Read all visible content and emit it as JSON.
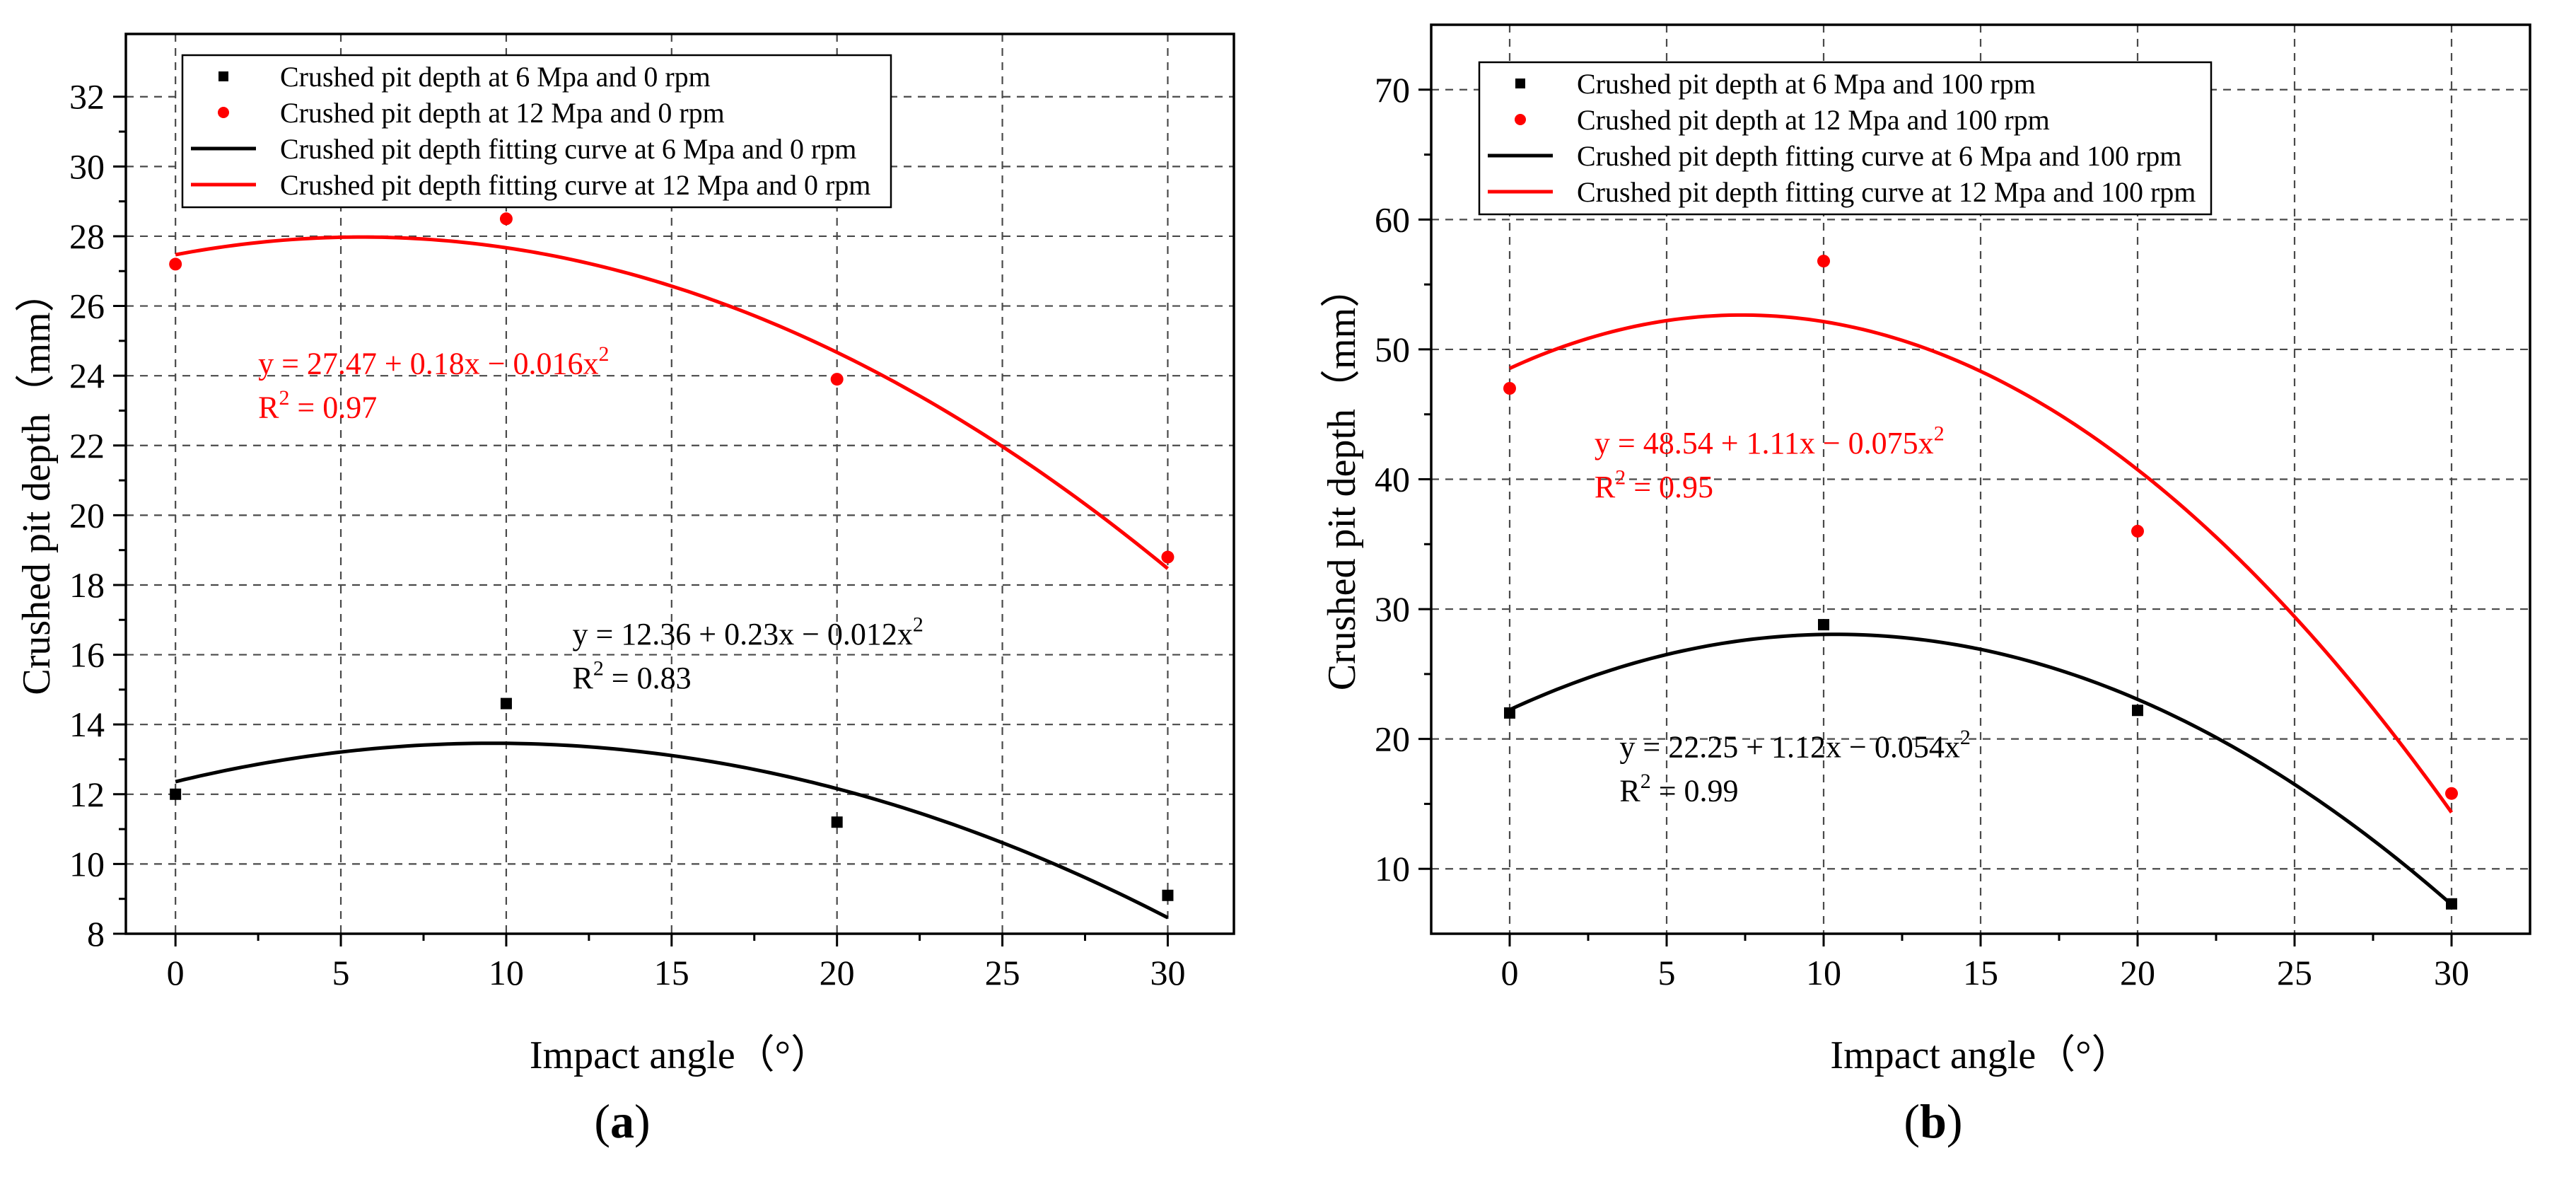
{
  "chart_data": [
    {
      "type": "scatter",
      "panel_label": "a",
      "xlabel": "Impact angle（°）",
      "ylabel": "Crushed pit depth（mm）",
      "xlim": [
        -1.5,
        32.0
      ],
      "ylim": [
        8.0,
        33.8
      ],
      "xticks": [
        0,
        5,
        10,
        15,
        20,
        25,
        30
      ],
      "yticks": [
        8,
        10,
        12,
        14,
        16,
        18,
        20,
        22,
        24,
        26,
        28,
        30,
        32
      ],
      "grid": true,
      "legend_position": "top-left",
      "series": [
        {
          "name": "Crushed pit depth at 6 Mpa and 0 rpm",
          "kind": "points",
          "marker": "square",
          "color": "#000000",
          "x": [
            0,
            10,
            20,
            30
          ],
          "y": [
            12.0,
            14.6,
            11.2,
            9.1
          ]
        },
        {
          "name": "Crushed pit depth at 12 Mpa and 0 rpm",
          "kind": "points",
          "marker": "circle",
          "color": "#ff0000",
          "x": [
            0,
            10,
            20,
            30
          ],
          "y": [
            27.2,
            28.5,
            23.9,
            18.8
          ]
        },
        {
          "name": "Crushed pit depth fitting curve at 6 Mpa and 0 rpm",
          "kind": "curve",
          "color": "#000000",
          "coef": [
            12.36,
            0.23,
            -0.012
          ],
          "domain": [
            0,
            30
          ]
        },
        {
          "name": "Crushed pit depth fitting curve at 12 Mpa and 0 rpm",
          "kind": "curve",
          "color": "#ff0000",
          "coef": [
            27.47,
            0.18,
            -0.016
          ],
          "domain": [
            0,
            30
          ]
        }
      ],
      "annotations": [
        {
          "id": "red",
          "color": "#ff0000",
          "x": 2.5,
          "y": 24.05,
          "eq_pre": "y = 27.47 + 0.18x − 0.016x",
          "eq_sup": "2",
          "r2_pre": "R",
          "r2_sup": "2",
          "r2_post": " = 0.97"
        },
        {
          "id": "black",
          "color": "#000000",
          "x": 12.0,
          "y": 16.3,
          "eq_pre": "y = 12.36 + 0.23x − 0.012x",
          "eq_sup": "2",
          "r2_pre": "R",
          "r2_sup": "2",
          "r2_post": " = 0.83"
        }
      ]
    },
    {
      "type": "scatter",
      "panel_label": "b",
      "xlabel": "Impact angle（°）",
      "ylabel": "Crushed pit depth（mm）",
      "xlim": [
        -2.5,
        32.5
      ],
      "ylim": [
        5.0,
        75.0
      ],
      "xticks": [
        0,
        5,
        10,
        15,
        20,
        25,
        30
      ],
      "yticks": [
        10,
        20,
        30,
        40,
        50,
        60,
        70
      ],
      "grid": true,
      "legend_position": "top-left",
      "series": [
        {
          "name": "Crushed pit depth at 6 Mpa and 100 rpm",
          "kind": "points",
          "marker": "square",
          "color": "#000000",
          "x": [
            0,
            10,
            20,
            30
          ],
          "y": [
            22.0,
            28.8,
            22.2,
            7.3
          ]
        },
        {
          "name": "Crushed pit depth at 12 Mpa and 100 rpm",
          "kind": "points",
          "marker": "circle",
          "color": "#ff0000",
          "x": [
            0,
            10,
            20,
            30
          ],
          "y": [
            47.0,
            56.8,
            36.0,
            15.8
          ]
        },
        {
          "name": "Crushed pit depth fitting curve at 6 Mpa and 100 rpm",
          "kind": "curve",
          "color": "#000000",
          "coef": [
            22.25,
            1.12,
            -0.054
          ],
          "domain": [
            0,
            30
          ]
        },
        {
          "name": "Crushed pit depth fitting curve at 12 Mpa and 100 rpm",
          "kind": "curve",
          "color": "#ff0000",
          "coef": [
            48.54,
            1.11,
            -0.075
          ],
          "domain": [
            0,
            30
          ]
        }
      ],
      "annotations": [
        {
          "id": "red",
          "color": "#ff0000",
          "x": 2.7,
          "y": 42.0,
          "eq_pre": "y = 48.54 + 1.11x − 0.075x",
          "eq_sup": "2",
          "r2_pre": "R",
          "r2_sup": "2",
          "r2_post": " = 0.95"
        },
        {
          "id": "black",
          "color": "#000000",
          "x": 3.5,
          "y": 18.6,
          "eq_pre": "y = 22.25 + 1.12x − 0.054x",
          "eq_sup": "2",
          "r2_pre": "R",
          "r2_sup": "2",
          "r2_post": " = 0.99"
        }
      ]
    }
  ]
}
